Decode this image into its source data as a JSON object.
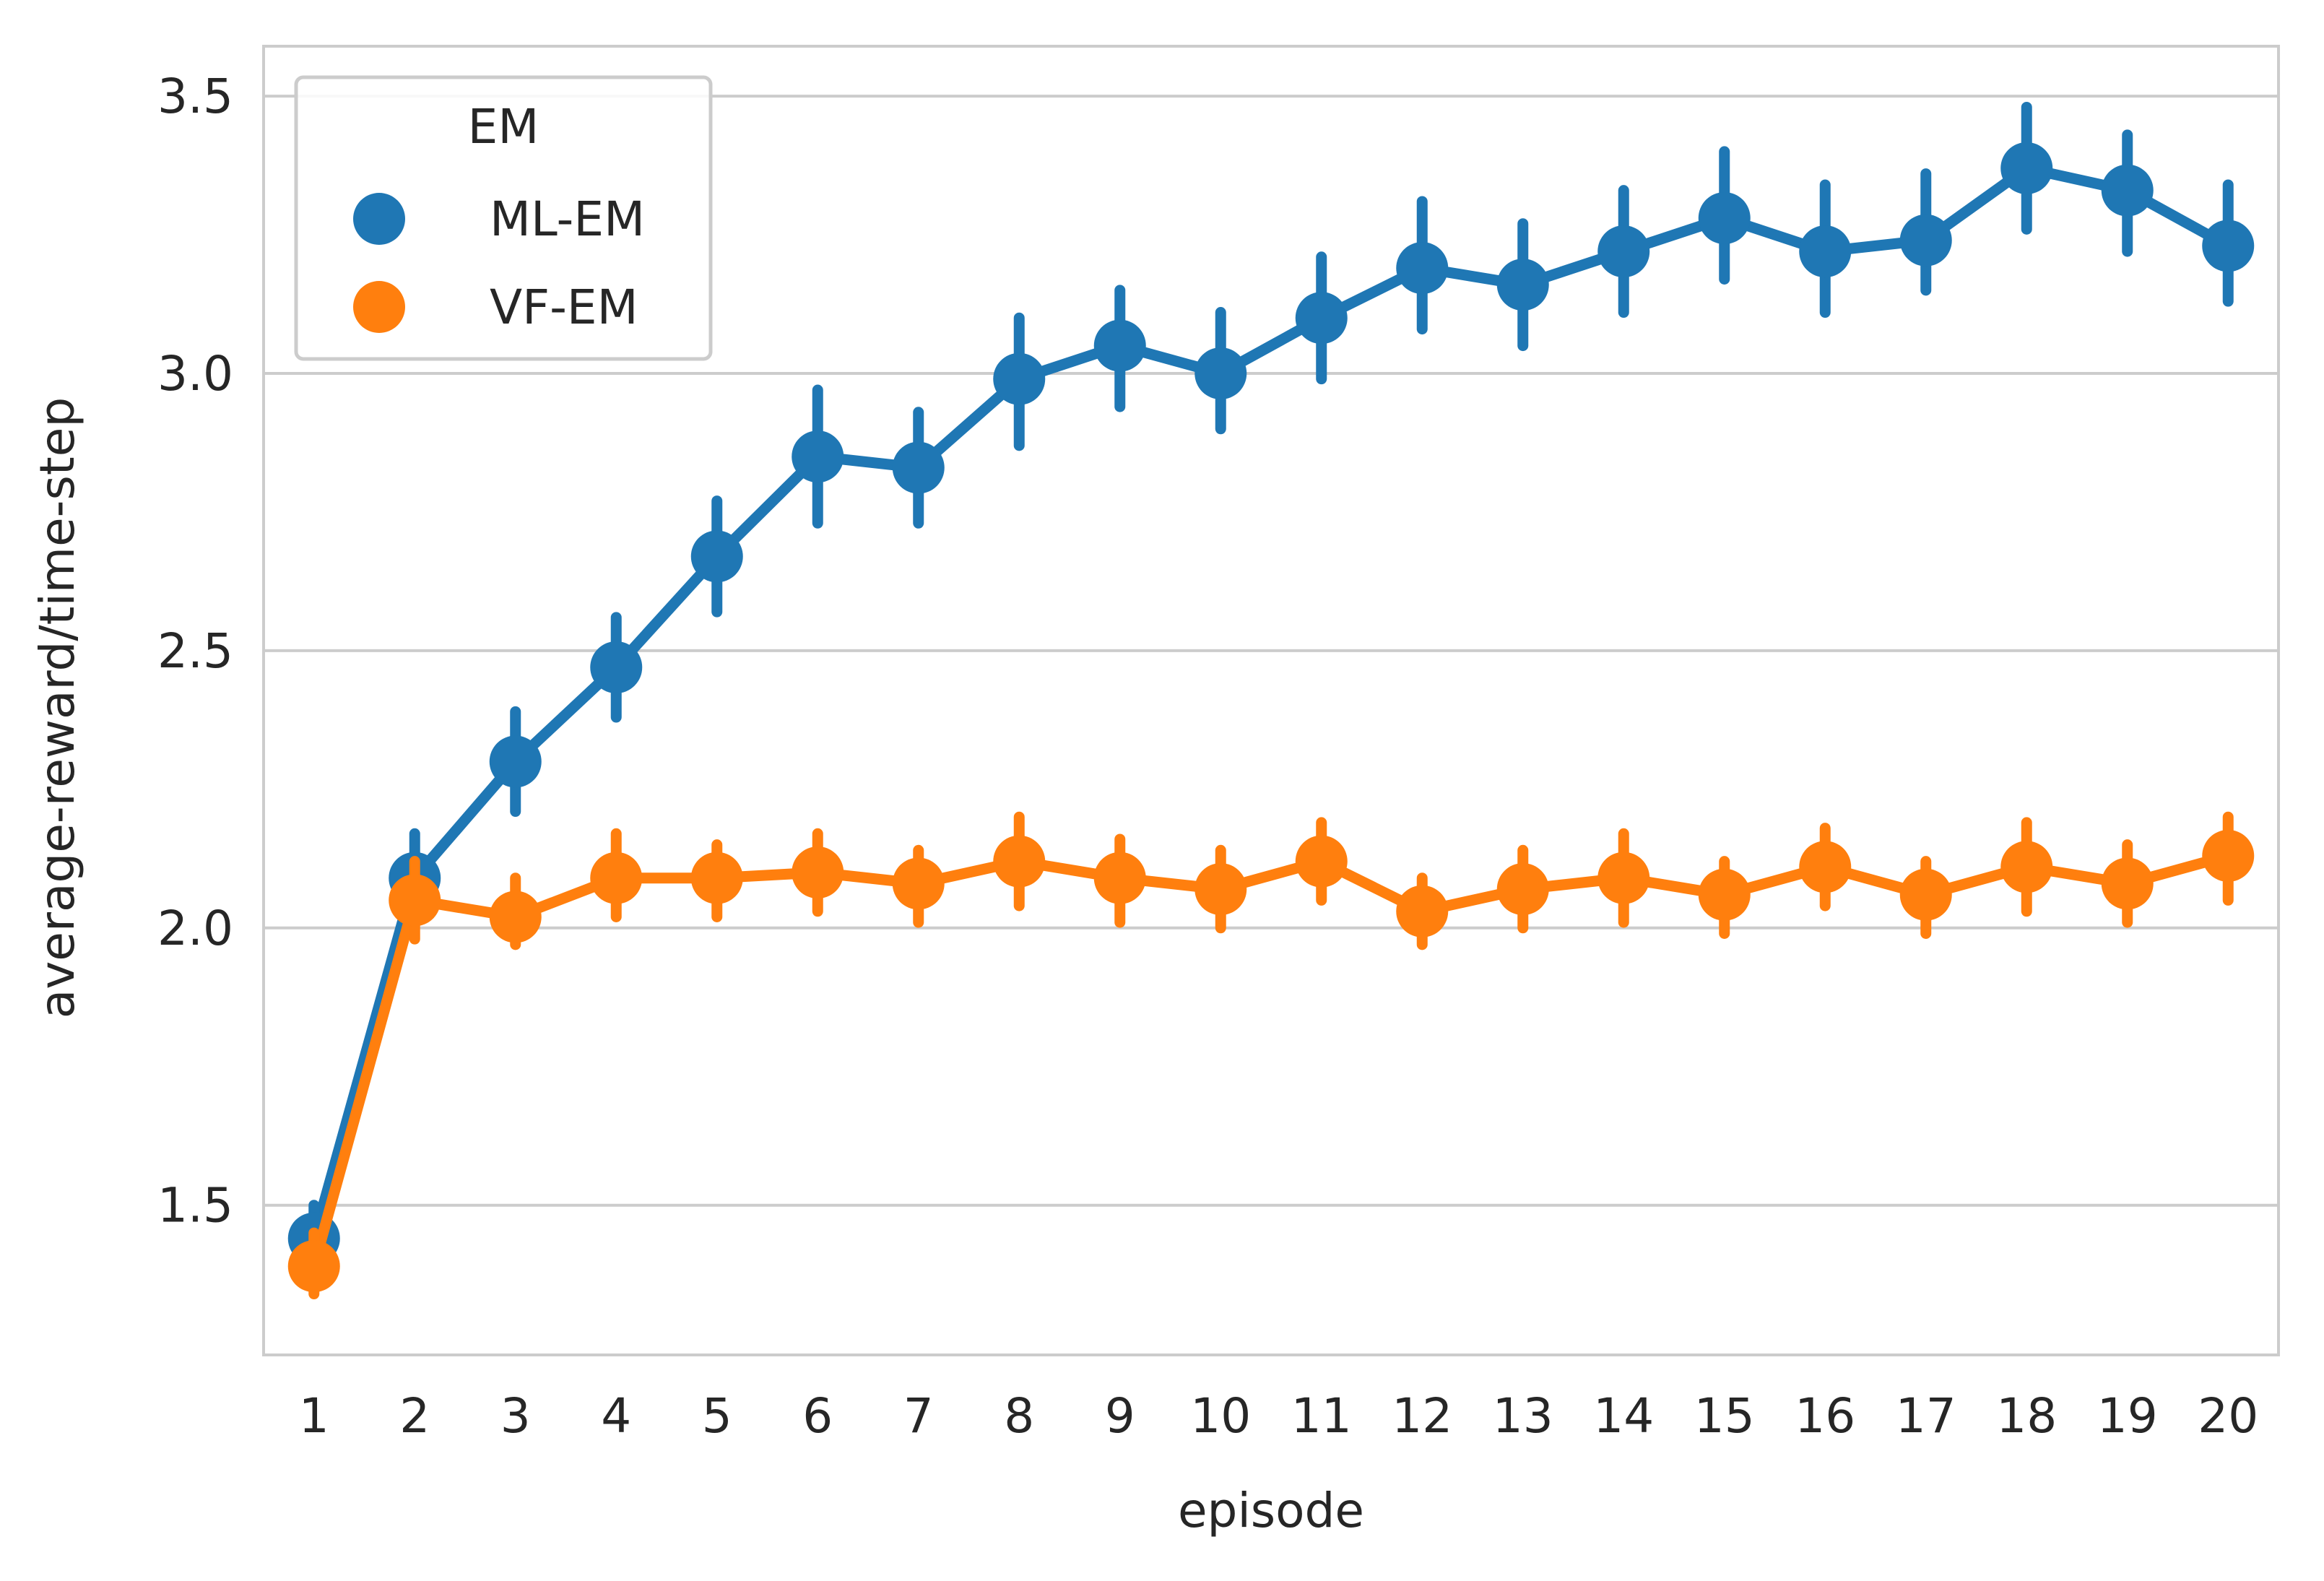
{
  "chart_data": {
    "type": "line",
    "title": "",
    "xlabel": "episode",
    "ylabel": "average-reward/time-step",
    "categories": [
      "1",
      "2",
      "3",
      "4",
      "5",
      "6",
      "7",
      "8",
      "9",
      "10",
      "11",
      "12",
      "13",
      "14",
      "15",
      "16",
      "17",
      "18",
      "19",
      "20"
    ],
    "ylim": [
      1.23,
      3.59
    ],
    "yticks": [
      "1.5",
      "2.0",
      "2.5",
      "3.0",
      "3.5"
    ],
    "grid": "y",
    "legend": {
      "title": "EM",
      "placement": "top-left"
    },
    "series": [
      {
        "name": "ML-EM",
        "color": "#1f77b4",
        "values": [
          1.44,
          2.09,
          2.3,
          2.47,
          2.67,
          2.85,
          2.83,
          2.99,
          3.05,
          3.0,
          3.1,
          3.19,
          3.16,
          3.22,
          3.28,
          3.22,
          3.24,
          3.37,
          3.33,
          3.23
        ],
        "err_low": [
          1.38,
          2.01,
          2.21,
          2.38,
          2.57,
          2.73,
          2.73,
          2.87,
          2.94,
          2.9,
          2.99,
          3.08,
          3.05,
          3.11,
          3.17,
          3.11,
          3.15,
          3.26,
          3.22,
          3.13
        ],
        "err_high": [
          1.5,
          2.17,
          2.39,
          2.56,
          2.77,
          2.97,
          2.93,
          3.1,
          3.15,
          3.11,
          3.21,
          3.31,
          3.27,
          3.33,
          3.4,
          3.34,
          3.36,
          3.48,
          3.43,
          3.34
        ]
      },
      {
        "name": "VF-EM",
        "color": "#ff7f0e",
        "values": [
          1.39,
          2.05,
          2.02,
          2.09,
          2.09,
          2.1,
          2.08,
          2.12,
          2.09,
          2.07,
          2.12,
          2.03,
          2.07,
          2.09,
          2.06,
          2.11,
          2.06,
          2.11,
          2.08,
          2.13
        ],
        "err_low": [
          1.34,
          1.98,
          1.97,
          2.02,
          2.02,
          2.03,
          2.01,
          2.04,
          2.01,
          2.0,
          2.05,
          1.97,
          2.0,
          2.01,
          1.99,
          2.04,
          1.99,
          2.03,
          2.01,
          2.05
        ],
        "err_high": [
          1.45,
          2.12,
          2.09,
          2.17,
          2.15,
          2.17,
          2.14,
          2.2,
          2.16,
          2.14,
          2.19,
          2.09,
          2.14,
          2.17,
          2.12,
          2.18,
          2.12,
          2.19,
          2.15,
          2.2
        ]
      }
    ]
  }
}
